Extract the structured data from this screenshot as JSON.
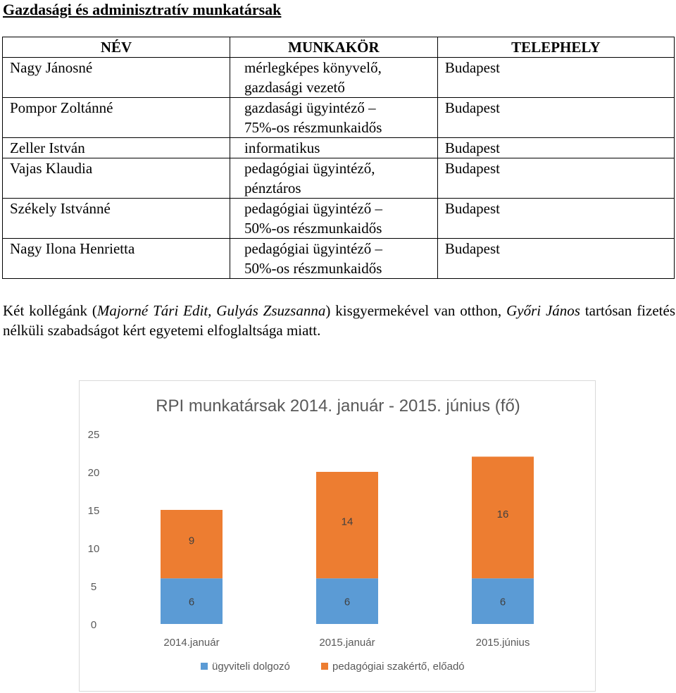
{
  "heading": "Gazdasági és adminisztratív munkatársak",
  "table": {
    "headers": [
      "NÉV",
      "MUNKAKÖR",
      "TELEPHELY"
    ],
    "rows": [
      {
        "name": "Nagy Jánosné",
        "job": [
          "mérlegképes könyvelő,",
          "gazdasági vezető"
        ],
        "site": "Budapest"
      },
      {
        "name": "Pompor Zoltánné",
        "job": [
          "gazdasági ügyintéző –",
          "75%-os részmunkaidős"
        ],
        "site": "Budapest"
      },
      {
        "name": "Zeller István",
        "job": [
          "informatikus"
        ],
        "site": "Budapest"
      },
      {
        "name": "Vajas Klaudia",
        "job": [
          "pedagógiai ügyintéző,",
          "pénztáros"
        ],
        "site": "Budapest"
      },
      {
        "name": "Székely Istvánné",
        "job": [
          "pedagógiai ügyintéző –",
          "50%-os részmunkaidős"
        ],
        "site": "Budapest"
      },
      {
        "name": "Nagy Ilona Henrietta",
        "job": [
          "pedagógiai ügyintéző –",
          "50%-os részmunkaidős"
        ],
        "site": "Budapest"
      }
    ]
  },
  "note": {
    "p1": "Két kollégánk (",
    "names1": "Majorné Tári Edit, Gulyás Zsuzsanna",
    "p2": ") kisgyermekével van otthon, ",
    "names2": "Győri János",
    "p3": " tartósan fizetés nélküli szabadságot kért egyetemi elfoglaltsága miatt."
  },
  "chart_data": {
    "type": "bar",
    "stacked": true,
    "title": "RPI munkatársak 2014. január - 2015. június (fő)",
    "categories": [
      "2014.január",
      "2015.január",
      "2015.június"
    ],
    "series": [
      {
        "name": "ügyviteli dolgozó",
        "values": [
          6,
          6,
          6
        ],
        "color": "#5b9bd5"
      },
      {
        "name": "pedagógiai szakértő, előadó",
        "values": [
          9,
          14,
          16
        ],
        "color": "#ed7d31"
      }
    ],
    "ylim": [
      0,
      25
    ],
    "yticks": [
      0,
      5,
      10,
      15,
      20,
      25
    ],
    "grid": false,
    "legend": "bottom",
    "data_labels": true
  }
}
